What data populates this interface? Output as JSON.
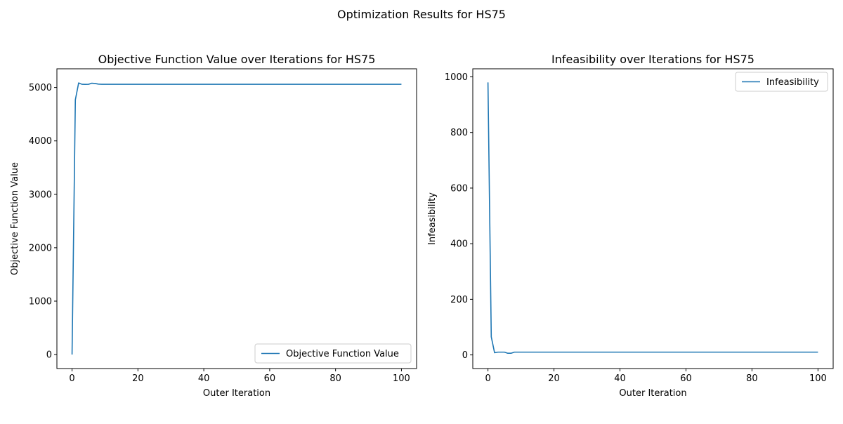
{
  "suptitle": "Optimization Results for HS75",
  "chart_data": [
    {
      "type": "line",
      "title": "Objective Function Value over Iterations for HS75",
      "xlabel": "Outer Iteration",
      "ylabel": "Objective Function Value",
      "xlim": [
        -4.6,
        104.6
      ],
      "ylim": [
        -262,
        5350
      ],
      "xticks": [
        0,
        20,
        40,
        60,
        80,
        100
      ],
      "yticks": [
        0,
        1000,
        2000,
        3000,
        4000,
        5000
      ],
      "legend": {
        "position": "lower-right",
        "entries": [
          "Objective Function Value"
        ]
      },
      "series": [
        {
          "name": "Objective Function Value",
          "color": "#1f77b4",
          "x": [
            0,
            1,
            2,
            3,
            4,
            5,
            6,
            7,
            8,
            9,
            10,
            20,
            30,
            40,
            50,
            60,
            70,
            80,
            90,
            100
          ],
          "y": [
            0,
            4770,
            5085,
            5060,
            5058,
            5060,
            5080,
            5075,
            5063,
            5060,
            5060,
            5060,
            5060,
            5060,
            5060,
            5060,
            5060,
            5060,
            5060,
            5060
          ]
        }
      ]
    },
    {
      "type": "line",
      "title": "Infeasibility over Iterations for HS75",
      "xlabel": "Outer Iteration",
      "ylabel": "Infeasibility",
      "xlim": [
        -4.6,
        104.6
      ],
      "ylim": [
        -49,
        1029
      ],
      "xticks": [
        0,
        20,
        40,
        60,
        80,
        100
      ],
      "yticks": [
        0,
        200,
        400,
        600,
        800,
        1000
      ],
      "legend": {
        "position": "top-right",
        "entries": [
          "Infeasibility"
        ]
      },
      "series": [
        {
          "name": "Infeasibility",
          "color": "#1f77b4",
          "x": [
            0,
            1,
            2,
            3,
            4,
            5,
            6,
            7,
            8,
            9,
            10,
            20,
            30,
            40,
            50,
            60,
            70,
            80,
            90,
            100
          ],
          "y": [
            980,
            65,
            8,
            10,
            10,
            10,
            6,
            6,
            10,
            10,
            10,
            10,
            10,
            10,
            10,
            10,
            10,
            10,
            10,
            10
          ]
        }
      ]
    }
  ]
}
